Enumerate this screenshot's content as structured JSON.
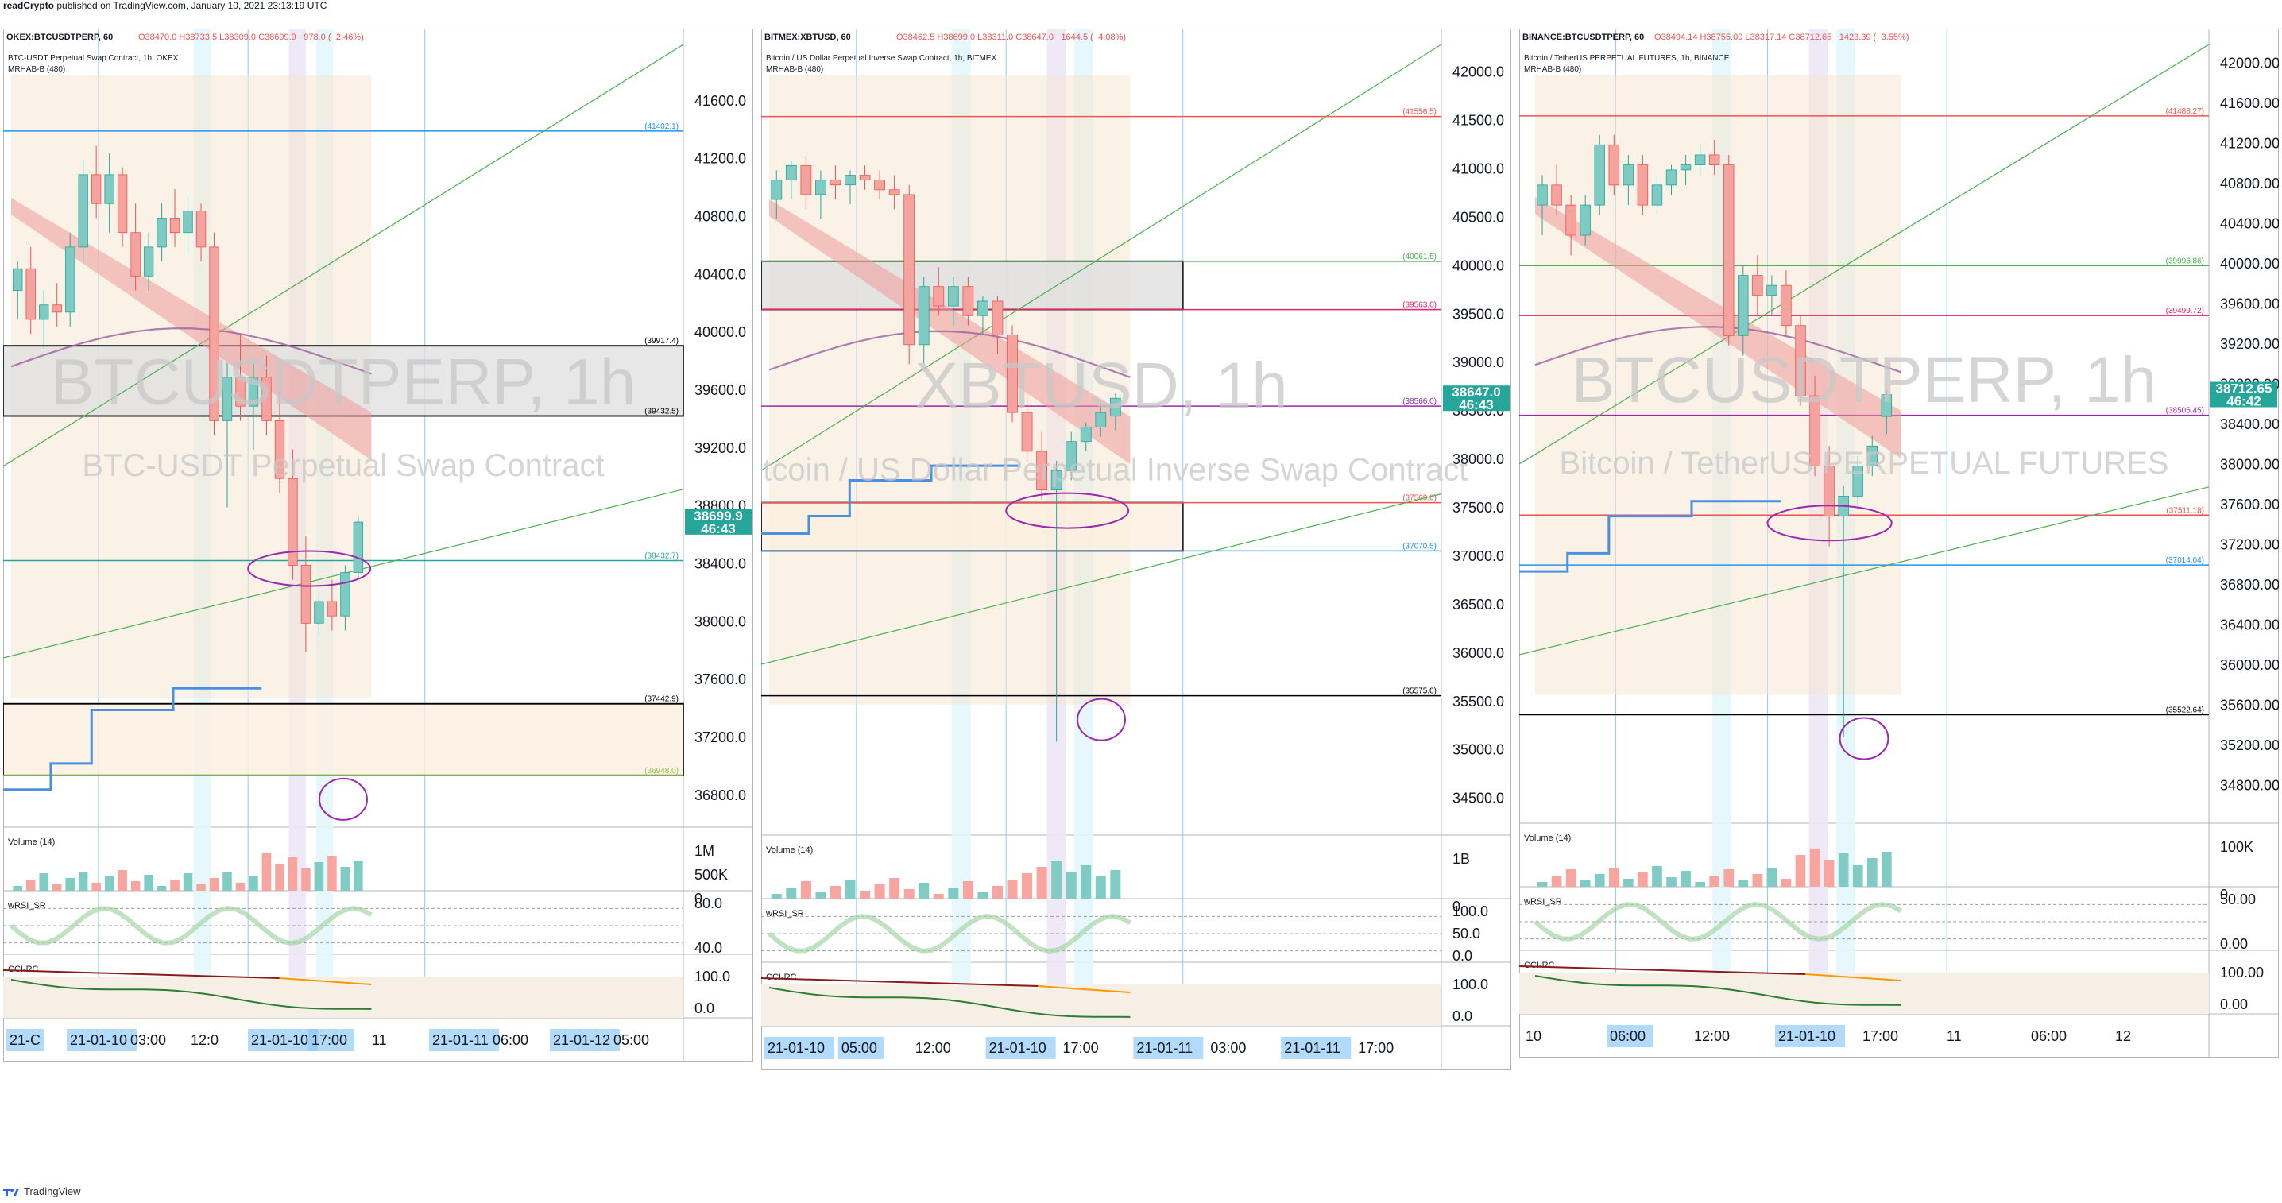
{
  "header": {
    "author": "readCrypto",
    "published": "published on TradingView.com, January 10, 2021 23:13:19 UTC"
  },
  "footer": {
    "brand": "TradingView"
  },
  "colors": {
    "up": "#26a69a",
    "down": "#ef5350",
    "accent": "#2962ff",
    "support_blue": "#4a90e2",
    "ribbon_red": "#ef9a9a",
    "ribbon_cyan": "#80deea"
  },
  "chart_data": [
    {
      "type": "candlestick",
      "symbol_line": "OKEX:BTCUSDTPERP, 60",
      "ohlc": {
        "o": "38470.0",
        "h": "38733.5",
        "l": "38309.0",
        "c": "38699.9",
        "chg": "−978.0 (−2.46%)"
      },
      "title": "BTC-USDT Perpetual Swap Contract, 1h, OKEX",
      "indicator": "MRHAB-B (480)",
      "watermark": "BTCUSDTPERP, 1h",
      "watermark_sub": "BTC-USDT Perpetual Swap Contract",
      "ylim": [
        36700,
        42000
      ],
      "yticks": [
        "41600.0",
        "41200.0",
        "40800.0",
        "40400.0",
        "40000.0",
        "39600.0",
        "39200.0",
        "38800.0",
        "38400.0",
        "38000.0",
        "37600.0",
        "37200.0",
        "36800.0"
      ],
      "ytick_values": [
        41600,
        41200,
        40800,
        40400,
        40000,
        39600,
        39200,
        38800,
        38400,
        38000,
        37600,
        37200,
        36800
      ],
      "last_price": "38699.9",
      "timer": "46:43",
      "levels": [
        {
          "value": 41402.1,
          "label": "(41402.1)",
          "color": "#2196f3"
        },
        {
          "value": 39917.4,
          "label": "(39917.4)",
          "color": "#000000"
        },
        {
          "value": 39432.5,
          "label": "(39432.5)",
          "color": "#000000"
        },
        {
          "value": 38432.7,
          "label": "(38432.7)",
          "color": "#26a69a"
        },
        {
          "value": 37442.9,
          "label": "(37442.9)",
          "color": "#000000"
        },
        {
          "value": 36948.0,
          "label": "(36948.0)",
          "color": "#8bc34a"
        }
      ],
      "candles": [
        [
          40300,
          40500,
          40100,
          40450
        ],
        [
          40450,
          40600,
          40000,
          40100
        ],
        [
          40100,
          40300,
          39900,
          40200
        ],
        [
          40200,
          40350,
          40050,
          40150
        ],
        [
          40150,
          40700,
          40050,
          40600
        ],
        [
          40600,
          41200,
          40500,
          41100
        ],
        [
          41100,
          41300,
          40800,
          40900
        ],
        [
          40900,
          41250,
          40700,
          41100
        ],
        [
          41100,
          41150,
          40600,
          40700
        ],
        [
          40700,
          40900,
          40300,
          40400
        ],
        [
          40400,
          40700,
          40300,
          40600
        ],
        [
          40600,
          40900,
          40500,
          40800
        ],
        [
          40800,
          41000,
          40600,
          40700
        ],
        [
          40700,
          40950,
          40550,
          40850
        ],
        [
          40850,
          40900,
          40500,
          40600
        ],
        [
          40600,
          40700,
          39300,
          39400
        ],
        [
          39400,
          39800,
          38800,
          39700
        ],
        [
          39700,
          40000,
          39400,
          39500
        ],
        [
          39500,
          39800,
          39200,
          39700
        ],
        [
          39700,
          39850,
          39300,
          39400
        ],
        [
          39400,
          39600,
          38900,
          39000
        ],
        [
          39000,
          39200,
          38300,
          38400
        ],
        [
          38400,
          38600,
          37800,
          38000
        ],
        [
          38000,
          38200,
          37900,
          38150
        ],
        [
          38150,
          38300,
          37950,
          38050
        ],
        [
          38050,
          38400,
          37950,
          38350
        ],
        [
          38350,
          38733,
          38309,
          38699
        ]
      ],
      "time_labels": [
        "21-C",
        "21-01-10",
        "03:00",
        "12:0",
        "21-01-10",
        "17:00",
        "11",
        "21-01-11",
        "06:00",
        "21-01-12",
        "05:00"
      ],
      "volume": {
        "title": "Volume (14)",
        "yticks": [
          "1M",
          "500K",
          "0"
        ]
      },
      "wrsi": {
        "title": "wRSI_SR",
        "yticks": [
          "80.0",
          "40.0"
        ]
      },
      "cci": {
        "title": "CCI-RC",
        "yticks": [
          "100.0",
          "0.0"
        ]
      }
    },
    {
      "type": "candlestick",
      "symbol_line": "BITMEX:XBTUSD, 60",
      "ohlc": {
        "o": "38462.5",
        "h": "38699.0",
        "l": "38311.0",
        "c": "38647.0",
        "chg": "−1644.5 (−4.08%)"
      },
      "title": "Bitcoin / US Dollar Perpetual Inverse Swap Contract, 1h, BITMEX",
      "indicator": "MRHAB-B (480)",
      "watermark": "XBTUSD, 1h",
      "watermark_sub": "Bitcoin / US Dollar Perpetual Inverse Swap Contract",
      "ylim": [
        34300,
        42300
      ],
      "yticks": [
        "42000.0",
        "41500.0",
        "41000.0",
        "40500.0",
        "40000.0",
        "39500.0",
        "39000.0",
        "38500.0",
        "38000.0",
        "37500.0",
        "37000.0",
        "36500.0",
        "36000.0",
        "35500.0",
        "35000.0",
        "34500.0"
      ],
      "ytick_values": [
        42000,
        41500,
        41000,
        40500,
        40000,
        39500,
        39000,
        38500,
        38000,
        37500,
        37000,
        36500,
        36000,
        35500,
        35000,
        34500
      ],
      "last_price": "38647.0",
      "timer": "46:43",
      "levels": [
        {
          "value": 41556.5,
          "label": "(41556.5)",
          "color": "#ef5350"
        },
        {
          "value": 40061.5,
          "label": "(40061.5)",
          "color": "#4caf50"
        },
        {
          "value": 39563.0,
          "label": "(39563.0)",
          "color": "#e91e63"
        },
        {
          "value": 38566.0,
          "label": "(38566.0)",
          "color": "#9c27b0"
        },
        {
          "value": 37569.0,
          "label": "(37569.0)",
          "color": "#ef5350"
        },
        {
          "value": 37070.5,
          "label": "(37070.5)",
          "color": "#2196f3"
        },
        {
          "value": 35575.0,
          "label": "(35575.0)",
          "color": "#000000"
        }
      ],
      "candles": [
        [
          40700,
          41000,
          40500,
          40900
        ],
        [
          40900,
          41100,
          40700,
          41050
        ],
        [
          41050,
          41150,
          40600,
          40750
        ],
        [
          40750,
          41000,
          40500,
          40900
        ],
        [
          40900,
          41050,
          40700,
          40850
        ],
        [
          40850,
          41000,
          40650,
          40950
        ],
        [
          40950,
          41050,
          40800,
          40900
        ],
        [
          40900,
          41000,
          40700,
          40800
        ],
        [
          40800,
          40950,
          40600,
          40750
        ],
        [
          40750,
          40850,
          39000,
          39200
        ],
        [
          39200,
          39900,
          39000,
          39800
        ],
        [
          39800,
          40000,
          39500,
          39600
        ],
        [
          39600,
          39900,
          39400,
          39800
        ],
        [
          39800,
          39900,
          39400,
          39500
        ],
        [
          39500,
          39700,
          39300,
          39650
        ],
        [
          39650,
          39700,
          39100,
          39300
        ],
        [
          39300,
          39400,
          38400,
          38500
        ],
        [
          38500,
          38700,
          38000,
          38100
        ],
        [
          38100,
          38300,
          37600,
          37700
        ],
        [
          37700,
          38000,
          35100,
          37900
        ],
        [
          37900,
          38300,
          37800,
          38200
        ],
        [
          38200,
          38400,
          38100,
          38350
        ],
        [
          38350,
          38600,
          38250,
          38500
        ],
        [
          38462,
          38699,
          38311,
          38647
        ]
      ],
      "time_labels": [
        "21-01-10",
        "05:00",
        "12:00",
        "21-01-10",
        "17:00",
        "21-01-11",
        "03:00",
        "21-01-11",
        "17:00"
      ],
      "volume": {
        "title": "Volume (14)",
        "yticks": [
          "1B",
          "0"
        ]
      },
      "wrsi": {
        "title": "wRSI_SR",
        "yticks": [
          "100.0",
          "50.0",
          "0.0"
        ]
      },
      "cci": {
        "title": "CCI-RC",
        "yticks": [
          "100.0",
          "0.0"
        ]
      }
    },
    {
      "type": "candlestick",
      "symbol_line": "BINANCE:BTCUSDTPERP, 60",
      "ohlc": {
        "o": "38494.14",
        "h": "38755.00",
        "l": "38317.14",
        "c": "38712.65",
        "chg": "−1423.39 (−3.55%)"
      },
      "title": "Bitcoin / TetherUS PERPETUAL FUTURES, 1h, BINANCE",
      "indicator": "MRHAB-B (480)",
      "watermark": "BTCUSDTPERP, 1h",
      "watermark_sub": "Bitcoin / TetherUS PERPETUAL FUTURES",
      "ylim": [
        34600,
        42200
      ],
      "yticks": [
        "42000.00",
        "41600.00",
        "41200.00",
        "40800.00",
        "40400.00",
        "40000.00",
        "39600.00",
        "39200.00",
        "38800.00",
        "38400.00",
        "38000.00",
        "37600.00",
        "37200.00",
        "36800.00",
        "36400.00",
        "36000.00",
        "35600.00",
        "35200.00",
        "34800.00"
      ],
      "ytick_values": [
        42000,
        41600,
        41200,
        40800,
        40400,
        40000,
        39600,
        39200,
        38800,
        38400,
        38000,
        37600,
        37200,
        36800,
        36400,
        36000,
        35600,
        35200,
        34800
      ],
      "last_price": "38712.65",
      "timer": "46:42",
      "levels": [
        {
          "value": 41488.27,
          "label": "(41488.27)",
          "color": "#ef5350"
        },
        {
          "value": 39996.86,
          "label": "(39996.86)",
          "color": "#4caf50"
        },
        {
          "value": 39499.72,
          "label": "(39499.72)",
          "color": "#e91e63"
        },
        {
          "value": 38505.45,
          "label": "(38505.45)",
          "color": "#9c27b0"
        },
        {
          "value": 37511.18,
          "label": "(37511.18)",
          "color": "#ef5350"
        },
        {
          "value": 37014.04,
          "label": "(37014.04)",
          "color": "#2196f3"
        },
        {
          "value": 35522.64,
          "label": "(35522.64)",
          "color": "#000000"
        }
      ],
      "candles": [
        [
          40600,
          40900,
          40300,
          40800
        ],
        [
          40800,
          41000,
          40500,
          40600
        ],
        [
          40600,
          40700,
          40100,
          40300
        ],
        [
          40300,
          40700,
          40200,
          40600
        ],
        [
          40600,
          41300,
          40500,
          41200
        ],
        [
          41200,
          41300,
          40700,
          40800
        ],
        [
          40800,
          41100,
          40600,
          41000
        ],
        [
          41000,
          41100,
          40500,
          40600
        ],
        [
          40600,
          40900,
          40500,
          40800
        ],
        [
          40800,
          41000,
          40700,
          40950
        ],
        [
          40950,
          41100,
          40800,
          41000
        ],
        [
          41000,
          41200,
          40900,
          41100
        ],
        [
          41100,
          41250,
          40900,
          41000
        ],
        [
          41000,
          41100,
          39200,
          39300
        ],
        [
          39300,
          40000,
          39100,
          39900
        ],
        [
          39900,
          40100,
          39500,
          39700
        ],
        [
          39700,
          39900,
          39500,
          39800
        ],
        [
          39800,
          39950,
          39300,
          39400
        ],
        [
          39400,
          39500,
          38600,
          38700
        ],
        [
          38700,
          38900,
          37900,
          38000
        ],
        [
          38000,
          38200,
          37200,
          37500
        ],
        [
          37500,
          37800,
          35300,
          37700
        ],
        [
          37700,
          38100,
          37600,
          38000
        ],
        [
          38000,
          38300,
          37900,
          38200
        ],
        [
          38494,
          38755,
          38317,
          38712
        ]
      ],
      "time_labels": [
        "10",
        "06:00",
        "12:00",
        "21-01-10",
        "17:00",
        "11",
        "06:00",
        "12"
      ],
      "volume": {
        "title": "Volume (14)",
        "yticks": [
          "100K",
          "0"
        ]
      },
      "wrsi": {
        "title": "wRSI_SR",
        "yticks": [
          "50.00",
          "0.00"
        ]
      },
      "cci": {
        "title": "CCI-RC",
        "yticks": [
          "100.00",
          "0.00"
        ]
      }
    }
  ]
}
